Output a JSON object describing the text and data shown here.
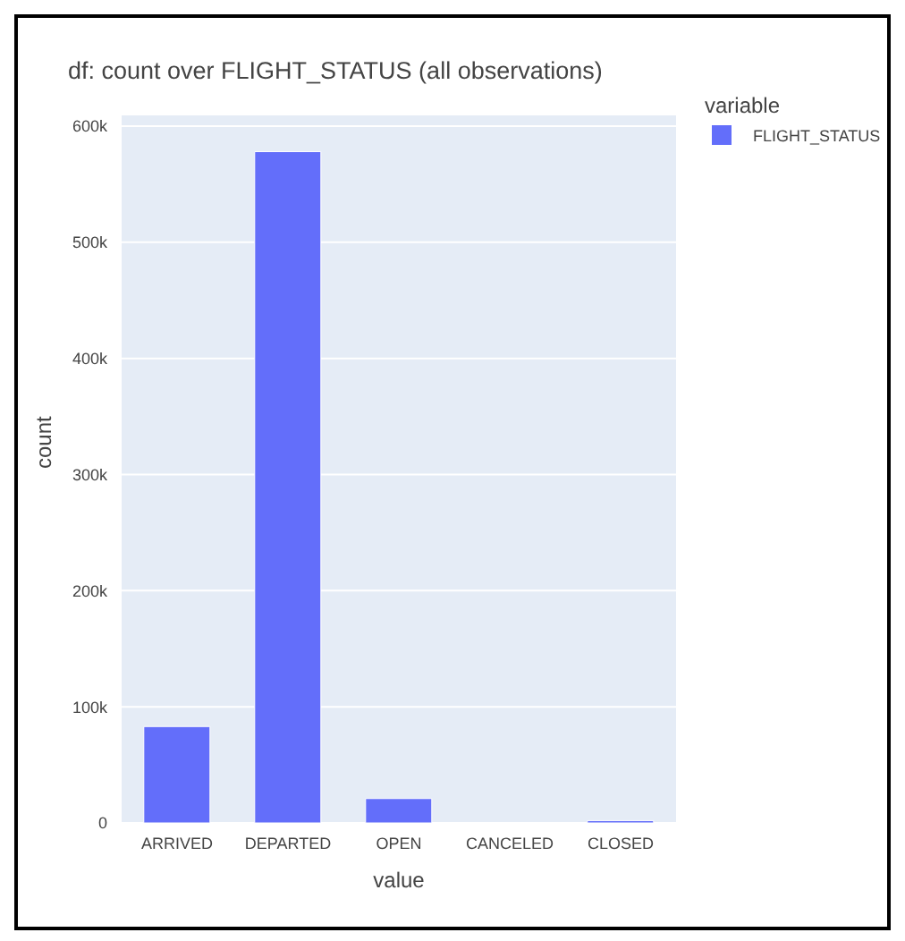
{
  "chart_data": {
    "type": "bar",
    "title": "df:  count over FLIGHT_STATUS (all observations)",
    "xlabel": "value",
    "ylabel": "count",
    "legend_title": "variable",
    "categories": [
      "ARRIVED",
      "DEPARTED",
      "OPEN",
      "CANCELED",
      "CLOSED"
    ],
    "series": [
      {
        "name": "FLIGHT_STATUS",
        "color": "#636efa",
        "values": [
          83000,
          578000,
          21000,
          0,
          2000
        ]
      }
    ],
    "ylim": [
      0,
      610000
    ],
    "yticks": [
      {
        "value": 0,
        "label": "0"
      },
      {
        "value": 100000,
        "label": "100k"
      },
      {
        "value": 200000,
        "label": "200k"
      },
      {
        "value": 300000,
        "label": "300k"
      },
      {
        "value": 400000,
        "label": "400k"
      },
      {
        "value": 500000,
        "label": "500k"
      },
      {
        "value": 600000,
        "label": "600k"
      }
    ],
    "grid": "y",
    "legend": "top right"
  }
}
